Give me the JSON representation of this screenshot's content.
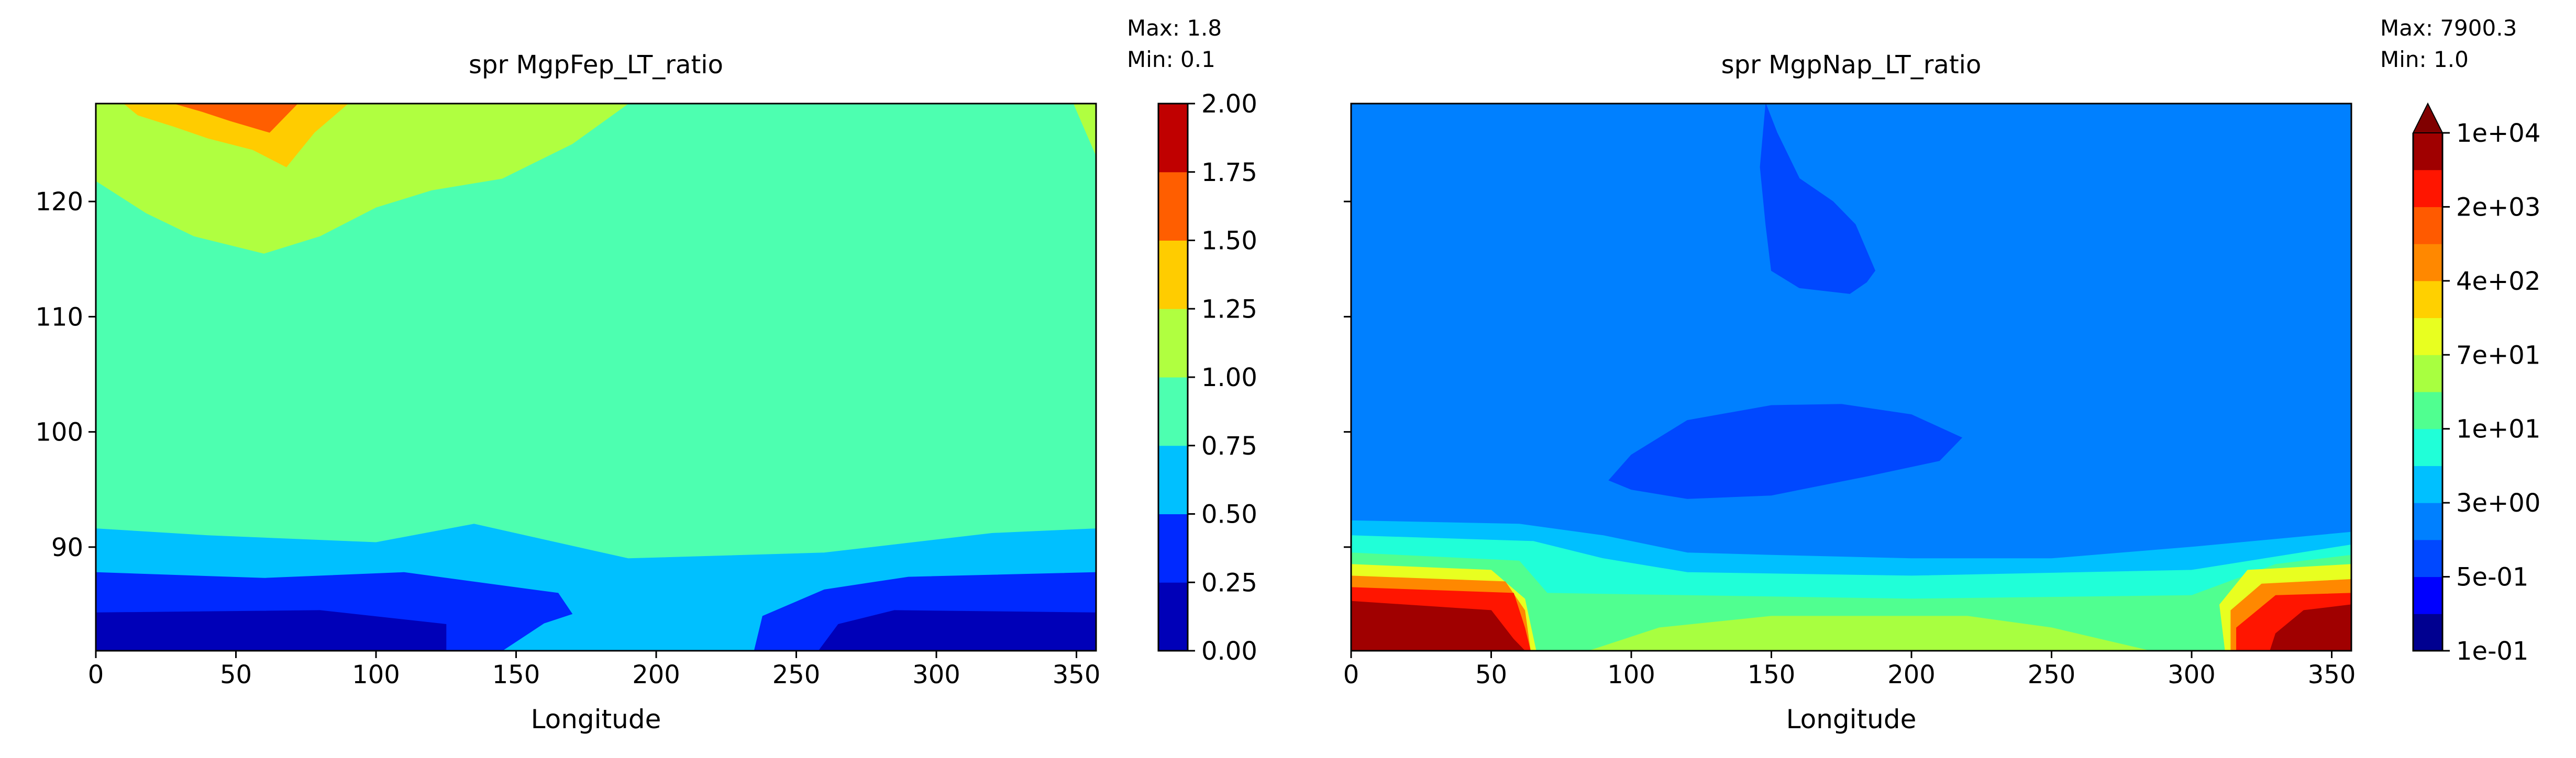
{
  "chart_data": [
    {
      "type": "contour",
      "title": "spr MgpFep_LT_ratio",
      "stats": {
        "max_label": "Max: 1.8",
        "min_label": "Min: 0.1"
      },
      "xlabel": "Longitude",
      "ylabel": "",
      "xlim": [
        0,
        357
      ],
      "ylim": [
        81,
        128.5
      ],
      "xticks": [
        0,
        50,
        100,
        150,
        200,
        250,
        300,
        350
      ],
      "yticks": [
        90,
        100,
        110,
        120
      ],
      "colorbar": {
        "scale": "linear",
        "levels": [
          0.0,
          0.25,
          0.5,
          0.75,
          1.0,
          1.25,
          1.5,
          1.75,
          2.0
        ],
        "tick_labels": [
          "0.00",
          "0.25",
          "0.50",
          "0.75",
          "1.00",
          "1.25",
          "1.50",
          "1.75",
          "2.00"
        ],
        "colors": [
          "#0000b8",
          "#0029ff",
          "#00c0ff",
          "#4dffb0",
          "#b0ff40",
          "#ffcc00",
          "#ff5e00",
          "#c00000"
        ]
      },
      "regions": [
        {
          "level_index": 4,
          "points": [
            [
              0,
              128.5
            ],
            [
              190,
              128.5
            ],
            [
              170,
              125
            ],
            [
              145,
              122
            ],
            [
              120,
              121
            ],
            [
              100,
              119.5
            ],
            [
              80,
              117
            ],
            [
              60,
              115.5
            ],
            [
              35,
              117
            ],
            [
              18,
              119
            ],
            [
              0,
              121.8
            ]
          ]
        },
        {
          "level_index": 4,
          "points": [
            [
              349,
              128.5
            ],
            [
              357,
              128.5
            ],
            [
              357,
              124
            ]
          ]
        },
        {
          "level_index": 5,
          "points": [
            [
              10,
              128.5
            ],
            [
              90,
              128.5
            ],
            [
              78,
              126
            ],
            [
              68,
              123
            ],
            [
              56,
              124.5
            ],
            [
              40,
              125.5
            ],
            [
              28,
              126.5
            ],
            [
              15,
              127.5
            ]
          ]
        },
        {
          "level_index": 6,
          "points": [
            [
              28,
              128.5
            ],
            [
              72,
              128.5
            ],
            [
              62,
              126
            ],
            [
              48,
              127
            ],
            [
              38,
              127.8
            ]
          ]
        },
        {
          "level_index": 2,
          "points": [
            [
              0,
              91.6
            ],
            [
              40,
              91
            ],
            [
              100,
              90.4
            ],
            [
              135,
              92
            ],
            [
              190,
              89
            ],
            [
              260,
              89.5
            ],
            [
              320,
              91.2
            ],
            [
              357,
              91.6
            ],
            [
              357,
              81
            ],
            [
              0,
              81
            ]
          ]
        },
        {
          "level_index": 1,
          "points": [
            [
              0,
              87.8
            ],
            [
              60,
              87.3
            ],
            [
              110,
              87.8
            ],
            [
              165,
              86
            ],
            [
              170,
              84.2
            ],
            [
              160,
              83.4
            ],
            [
              145,
              81
            ],
            [
              125,
              81
            ],
            [
              125,
              83.3
            ],
            [
              80,
              84.5
            ],
            [
              0,
              84.3
            ]
          ]
        },
        {
          "level_index": 1,
          "points": [
            [
              357,
              87.8
            ],
            [
              290,
              87.4
            ],
            [
              260,
              86.3
            ],
            [
              238,
              84
            ],
            [
              235,
              81
            ],
            [
              357,
              81
            ]
          ]
        },
        {
          "level_index": 0,
          "points": [
            [
              0,
              84.3
            ],
            [
              80,
              84.5
            ],
            [
              125,
              83.3
            ],
            [
              125,
              81
            ],
            [
              0,
              81
            ]
          ]
        },
        {
          "level_index": 0,
          "points": [
            [
              357,
              84.3
            ],
            [
              285,
              84.5
            ],
            [
              265,
              83.3
            ],
            [
              258,
              81
            ],
            [
              357,
              81
            ]
          ]
        }
      ]
    },
    {
      "type": "contour",
      "title": "spr MgpNap_LT_ratio",
      "stats": {
        "max_label": "Max: 7900.3",
        "min_label": "Min: 1.0"
      },
      "xlabel": "Longitude",
      "ylabel": "",
      "xlim": [
        0,
        357
      ],
      "ylim": [
        81,
        128.5
      ],
      "xticks": [
        0,
        50,
        100,
        150,
        200,
        250,
        300,
        350
      ],
      "yticks": [
        90,
        100,
        110,
        120
      ],
      "colorbar": {
        "scale": "log",
        "extend": "max",
        "tick_labels": [
          "1e-01",
          "5e-01",
          "3e+00",
          "1e+01",
          "7e+01",
          "4e+02",
          "2e+03",
          "1e+04"
        ],
        "colors": [
          "#000090",
          "#0000ff",
          "#0048ff",
          "#0080ff",
          "#00c0ff",
          "#20ffd8",
          "#50ff90",
          "#a8ff40",
          "#e8ff20",
          "#ffd000",
          "#ff8800",
          "#ff5a00",
          "#ff1500",
          "#a00000"
        ],
        "extend_color": "#800000"
      },
      "regions": [
        {
          "level_index": 4,
          "points": [
            [
              0,
              92.3
            ],
            [
              60,
              92
            ],
            [
              90,
              91
            ],
            [
              120,
              89.5
            ],
            [
              150,
              89.3
            ],
            [
              200,
              89
            ],
            [
              250,
              89
            ],
            [
              300,
              90
            ],
            [
              357,
              91.3
            ],
            [
              357,
              81
            ],
            [
              0,
              81
            ]
          ]
        },
        {
          "level_index": 5,
          "points": [
            [
              0,
              91
            ],
            [
              65,
              90.5
            ],
            [
              90,
              89
            ],
            [
              120,
              87.8
            ],
            [
              200,
              87.5
            ],
            [
              300,
              88
            ],
            [
              357,
              90.2
            ],
            [
              357,
              81
            ],
            [
              0,
              81
            ]
          ]
        },
        {
          "level_index": 6,
          "points": [
            [
              0,
              89.5
            ],
            [
              60,
              88.8
            ],
            [
              70,
              86
            ],
            [
              120,
              85.8
            ],
            [
              200,
              85.5
            ],
            [
              300,
              85.8
            ],
            [
              330,
              88.5
            ],
            [
              357,
              89.3
            ],
            [
              357,
              81
            ],
            [
              0,
              81
            ]
          ]
        },
        {
          "level_index": 7,
          "points": [
            [
              85,
              81
            ],
            [
              110,
              83
            ],
            [
              150,
              84
            ],
            [
              190,
              84
            ],
            [
              220,
              84
            ],
            [
              250,
              83
            ],
            [
              285,
              81
            ]
          ]
        },
        {
          "level_index": 8,
          "points": [
            [
              0,
              88.5
            ],
            [
              50,
              88
            ],
            [
              62,
              85.5
            ],
            [
              66,
              81
            ],
            [
              0,
              81
            ]
          ]
        },
        {
          "level_index": 8,
          "points": [
            [
              357,
              88.5
            ],
            [
              320,
              88
            ],
            [
              310,
              85
            ],
            [
              312,
              81
            ],
            [
              357,
              81
            ]
          ]
        },
        {
          "level_index": 10,
          "points": [
            [
              0,
              87.5
            ],
            [
              55,
              87
            ],
            [
              62,
              84.5
            ],
            [
              64,
              81
            ],
            [
              0,
              81
            ]
          ]
        },
        {
          "level_index": 10,
          "points": [
            [
              357,
              87.2
            ],
            [
              325,
              86.8
            ],
            [
              314,
              84.5
            ],
            [
              314,
              81
            ],
            [
              357,
              81
            ]
          ]
        },
        {
          "level_index": 12,
          "points": [
            [
              0,
              86.5
            ],
            [
              58,
              86
            ],
            [
              62,
              83
            ],
            [
              64,
              81
            ],
            [
              0,
              81
            ]
          ]
        },
        {
          "level_index": 12,
          "points": [
            [
              357,
              86
            ],
            [
              330,
              85.8
            ],
            [
              316,
              83
            ],
            [
              316,
              81
            ],
            [
              357,
              81
            ]
          ]
        },
        {
          "level_index": 13,
          "points": [
            [
              0,
              85.3
            ],
            [
              50,
              84.5
            ],
            [
              58,
              82
            ],
            [
              62,
              81
            ],
            [
              0,
              81
            ]
          ]
        },
        {
          "level_index": 13,
          "points": [
            [
              357,
              85
            ],
            [
              340,
              84.5
            ],
            [
              330,
              82.5
            ],
            [
              328,
              81
            ],
            [
              357,
              81
            ]
          ]
        },
        {
          "level_index": 2,
          "points": [
            [
              148,
              128.5
            ],
            [
              152,
              126
            ],
            [
              160,
              122
            ],
            [
              172,
              120
            ],
            [
              180,
              118
            ],
            [
              187,
              114
            ],
            [
              184,
              113
            ],
            [
              178,
              112
            ],
            [
              160,
              112.5
            ],
            [
              150,
              114
            ],
            [
              148,
              118
            ],
            [
              146,
              123
            ]
          ]
        },
        {
          "level_index": 2,
          "points": [
            [
              92,
              95.8
            ],
            [
              100,
              98
            ],
            [
              120,
              101
            ],
            [
              150,
              102.3
            ],
            [
              175,
              102.4
            ],
            [
              200,
              101.5
            ],
            [
              218,
              99.5
            ],
            [
              210,
              97.5
            ],
            [
              185,
              96.2
            ],
            [
              150,
              94.5
            ],
            [
              120,
              94.2
            ],
            [
              100,
              95
            ]
          ]
        }
      ]
    }
  ]
}
